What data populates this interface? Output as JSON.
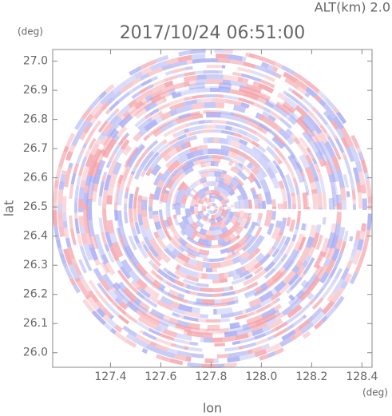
{
  "chart_data": {
    "type": "heatmap",
    "title": "2017/10/24 06:51:00",
    "subtitle": "ALT(km) 2.0",
    "x_label": "lon",
    "y_label": "lat",
    "x_unit": "(deg)",
    "y_unit": "(deg)",
    "xlim": [
      127.17,
      128.44
    ],
    "ylim": [
      25.95,
      27.04
    ],
    "xticks": [
      127.4,
      127.6,
      127.8,
      {
        "value": 128,
        "label": "128.0"
      },
      128.2,
      128.4
    ],
    "yticks": [
      {
        "value": 26,
        "label": "26.0"
      },
      26.1,
      26.2,
      26.3,
      26.4,
      26.5,
      26.6,
      26.7,
      26.8,
      26.9,
      {
        "value": 27,
        "label": "27.0"
      }
    ]
  }
}
